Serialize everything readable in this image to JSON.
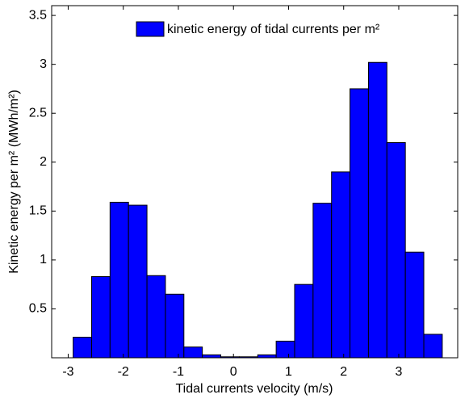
{
  "chart_data": {
    "type": "histogram",
    "xlabel": "Tidal currents velocity (m/s)",
    "ylabel": "Kinetic energy per m² (MWh/m²)",
    "series": [
      {
        "name": "kinetic energy of tidal currents per m²",
        "color": "#0000ff",
        "bins": [
          -2.91,
          -2.575,
          -2.24,
          -1.905,
          -1.57,
          -1.235,
          -0.9,
          -0.565,
          -0.23,
          0.105,
          0.44,
          0.775,
          1.11,
          1.445,
          1.78,
          2.115,
          2.45,
          2.785,
          3.12,
          3.455,
          3.79
        ],
        "values": [
          0.21,
          0.83,
          1.59,
          1.56,
          0.84,
          0.65,
          0.11,
          0.03,
          0.01,
          0.01,
          0.03,
          0.17,
          0.75,
          1.58,
          1.9,
          2.75,
          3.02,
          2.2,
          1.08,
          0.24
        ]
      }
    ],
    "xlim": [
      -3.3,
      4.07
    ],
    "xticks": [
      -3,
      -2,
      -1,
      0,
      1,
      2,
      3
    ],
    "ylim": [
      0,
      3.6
    ],
    "yticks": [
      0.5,
      1,
      1.5,
      2,
      2.5,
      3,
      3.5
    ],
    "legend": "top-right"
  }
}
